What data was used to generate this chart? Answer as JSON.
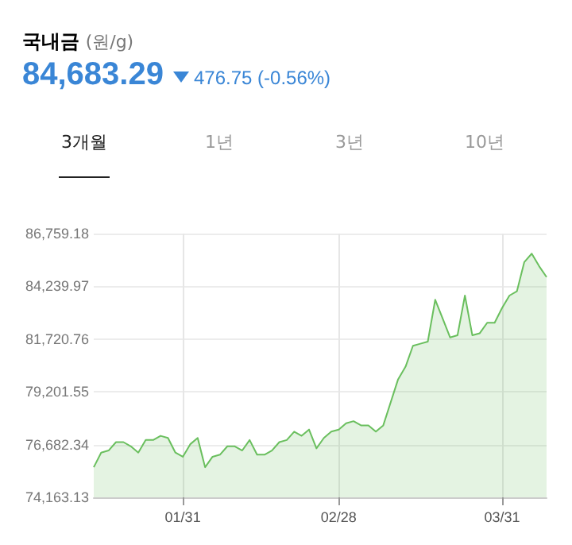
{
  "chart_data": {
    "type": "area",
    "title": "국내금",
    "subtitle": "(원/g)",
    "annotations": [
      "84,683.29",
      "476.75 (-0.56%)",
      "3개월",
      "1년",
      "3년",
      "10년"
    ],
    "categories": [
      null,
      null,
      null,
      null,
      null,
      null,
      null,
      null,
      null,
      null,
      null,
      null,
      "01/31",
      null,
      null,
      null,
      null,
      null,
      null,
      null,
      null,
      null,
      null,
      null,
      null,
      null,
      null,
      null,
      null,
      null,
      null,
      null,
      null,
      "02/28",
      null,
      null,
      null,
      null,
      null,
      null,
      null,
      null,
      null,
      null,
      null,
      null,
      null,
      null,
      null,
      null,
      null,
      null,
      null,
      null,
      null,
      "03/31",
      null,
      null,
      null,
      null,
      null,
      null
    ],
    "series": [
      {
        "color": "#6abf5e",
        "values": [
          75600,
          76300,
          76400,
          76800,
          76800,
          76600,
          76300,
          76900,
          76900,
          77100,
          77000,
          76300,
          76100,
          76700,
          77000,
          75600,
          76100,
          76200,
          76600,
          76600,
          76400,
          76900,
          76200,
          76200,
          76400,
          76800,
          76900,
          77300,
          77100,
          77400,
          76500,
          77000,
          77300,
          77400,
          77700,
          77800,
          77600,
          77600,
          77300,
          77600,
          78700,
          79800,
          80400,
          81400,
          81500,
          81600,
          83600,
          82700,
          81800,
          81900,
          83800,
          81900,
          82000,
          82500,
          82500,
          83200,
          83800,
          84000,
          85400,
          85800,
          85200,
          84683
        ]
      }
    ],
    "ylim": [
      74163.13,
      86759.18
    ],
    "yticks": [
      {
        "value": 74163.13,
        "label": "74,163.13"
      },
      {
        "value": 76682.34,
        "label": "76,682.34"
      },
      {
        "value": 79201.55,
        "label": "79,201.55"
      },
      {
        "value": 81720.76,
        "label": "81,720.76"
      },
      {
        "value": 84239.97,
        "label": "84,239.97"
      },
      {
        "value": 86759.18,
        "label": "86,759.18"
      }
    ],
    "grid": true,
    "marker": "none",
    "line_style": "solid"
  }
}
